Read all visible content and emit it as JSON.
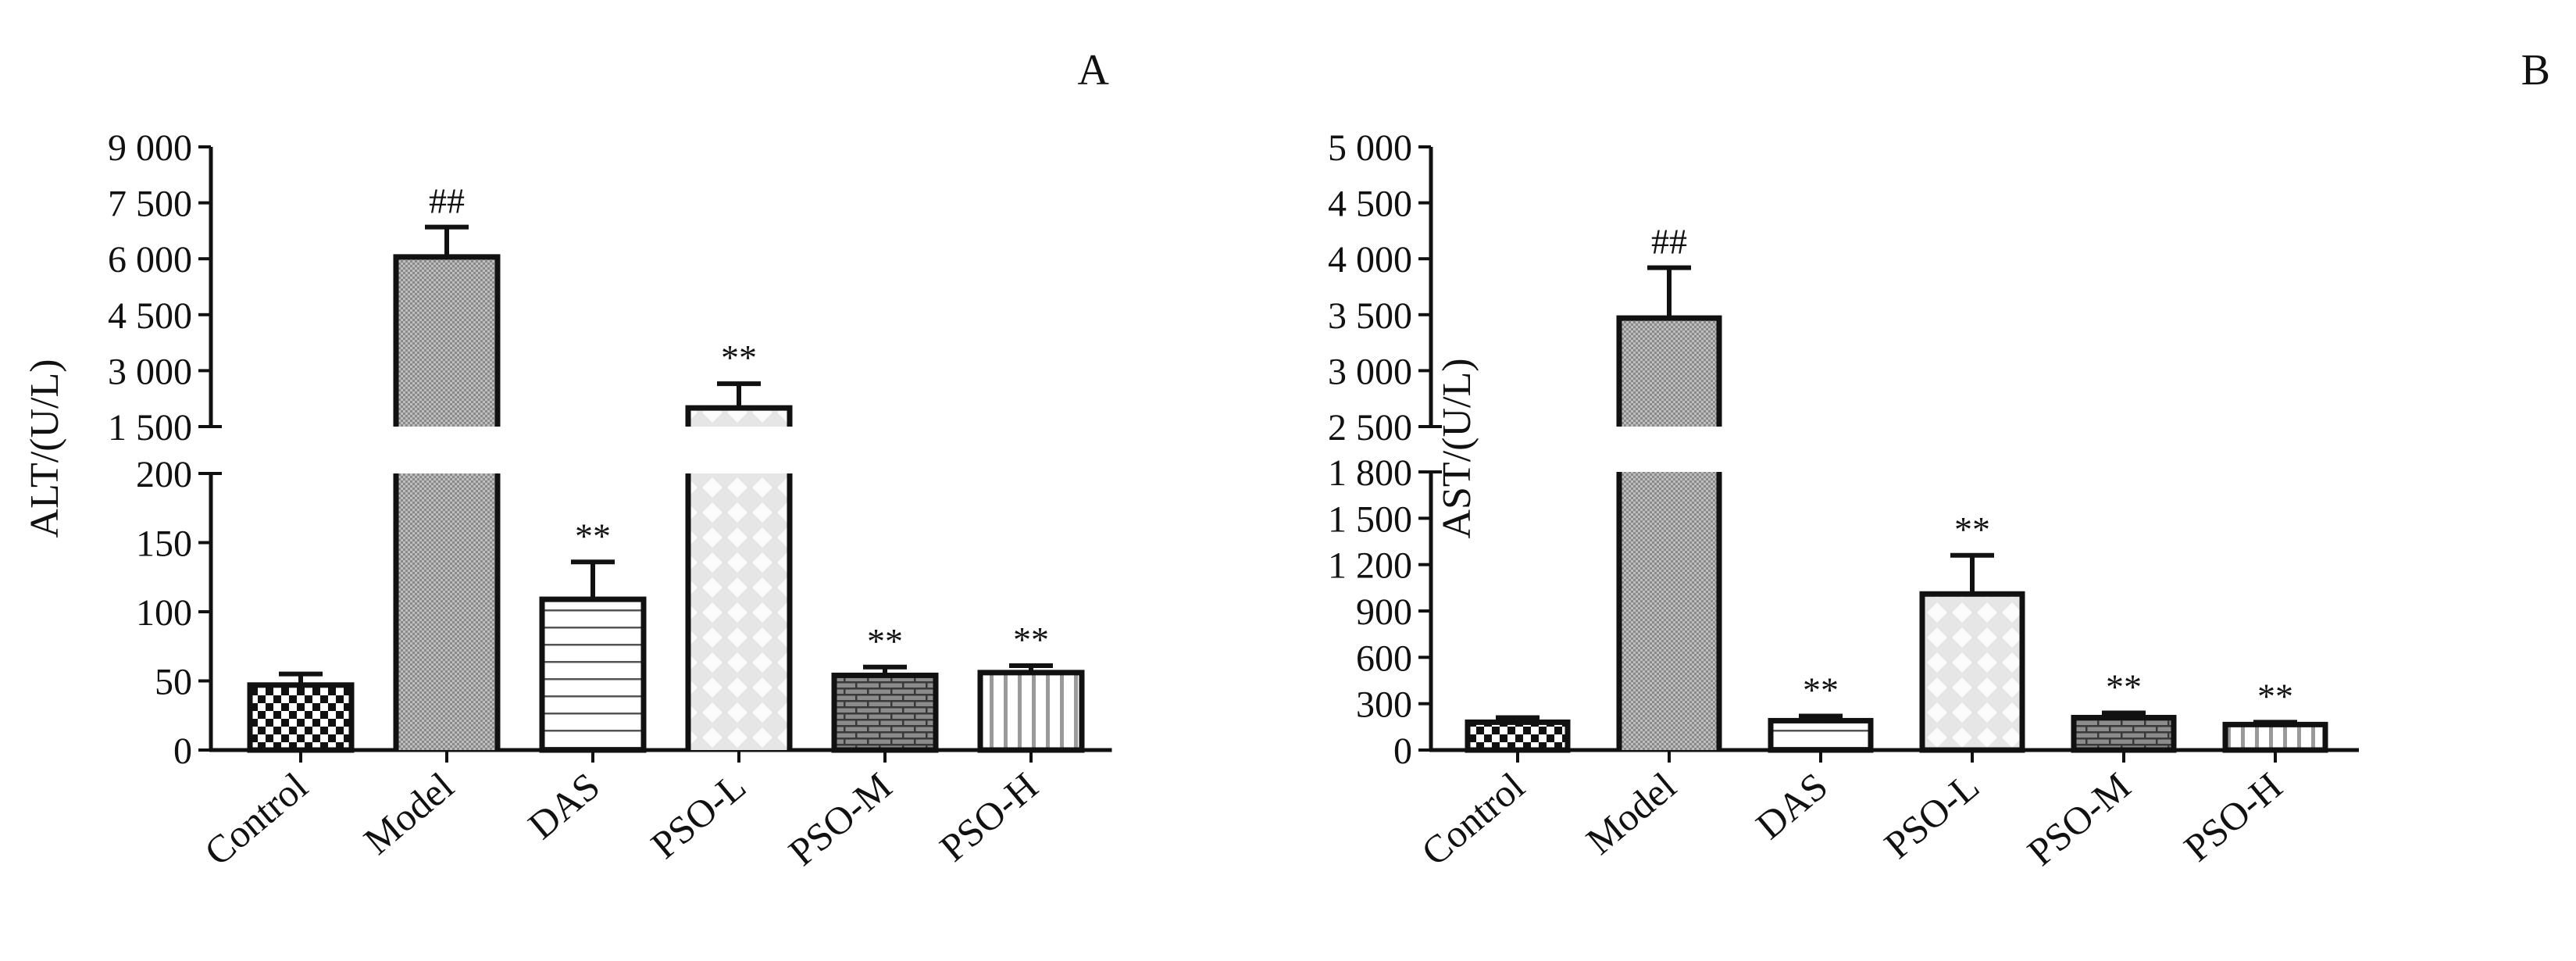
{
  "chart_data": [
    {
      "panel_label": "A",
      "type": "bar",
      "ylabel": "ALT/(U/L)",
      "categories": [
        "Control",
        "Model",
        "DAS",
        "PSO-L",
        "PSO-M",
        "PSO-H"
      ],
      "values": [
        47,
        6050,
        109,
        2000,
        54,
        56
      ],
      "errors": [
        8,
        800,
        27,
        650,
        6,
        5
      ],
      "annotations": [
        "",
        "##",
        "**",
        "**",
        "**",
        "**"
      ],
      "broken_axis": {
        "lower": {
          "range": [
            0,
            200
          ],
          "ticks": [
            0,
            50,
            100,
            150,
            200
          ],
          "tick_labels": [
            "0",
            "50",
            "100",
            "150",
            "200"
          ]
        },
        "upper": {
          "range": [
            1500,
            9000
          ],
          "ticks": [
            1500,
            3000,
            4500,
            6000,
            7500,
            9000
          ],
          "tick_labels": [
            "1 500",
            "3 000",
            "4 500",
            "6 000",
            "7 500",
            "9 000"
          ]
        }
      },
      "patterns": [
        "checker",
        "fine-dots",
        "horizontal-lines",
        "diamond-lattice",
        "brick",
        "vertical-stripes"
      ]
    },
    {
      "panel_label": "B",
      "type": "bar",
      "ylabel": "AST/(U/L)",
      "categories": [
        "Control",
        "Model",
        "DAS",
        "PSO-L",
        "PSO-M",
        "PSO-H"
      ],
      "values": [
        180,
        3470,
        190,
        1010,
        210,
        165
      ],
      "errors": [
        30,
        450,
        30,
        250,
        30,
        15
      ],
      "annotations": [
        "",
        "##",
        "**",
        "**",
        "**",
        "**"
      ],
      "broken_axis": {
        "lower": {
          "range": [
            0,
            1800
          ],
          "ticks": [
            0,
            300,
            600,
            900,
            1200,
            1500,
            1800
          ],
          "tick_labels": [
            "0",
            "300",
            "600",
            "900",
            "1 200",
            "1 500",
            "1 800"
          ]
        },
        "upper": {
          "range": [
            2500,
            5000
          ],
          "ticks": [
            2500,
            3000,
            3500,
            4000,
            4500,
            5000
          ],
          "tick_labels": [
            "2 500",
            "3 000",
            "3 500",
            "4 000",
            "4 500",
            "5 000"
          ]
        }
      },
      "patterns": [
        "checker",
        "fine-dots",
        "horizontal-lines",
        "diamond-lattice",
        "brick",
        "vertical-stripes"
      ]
    }
  ]
}
